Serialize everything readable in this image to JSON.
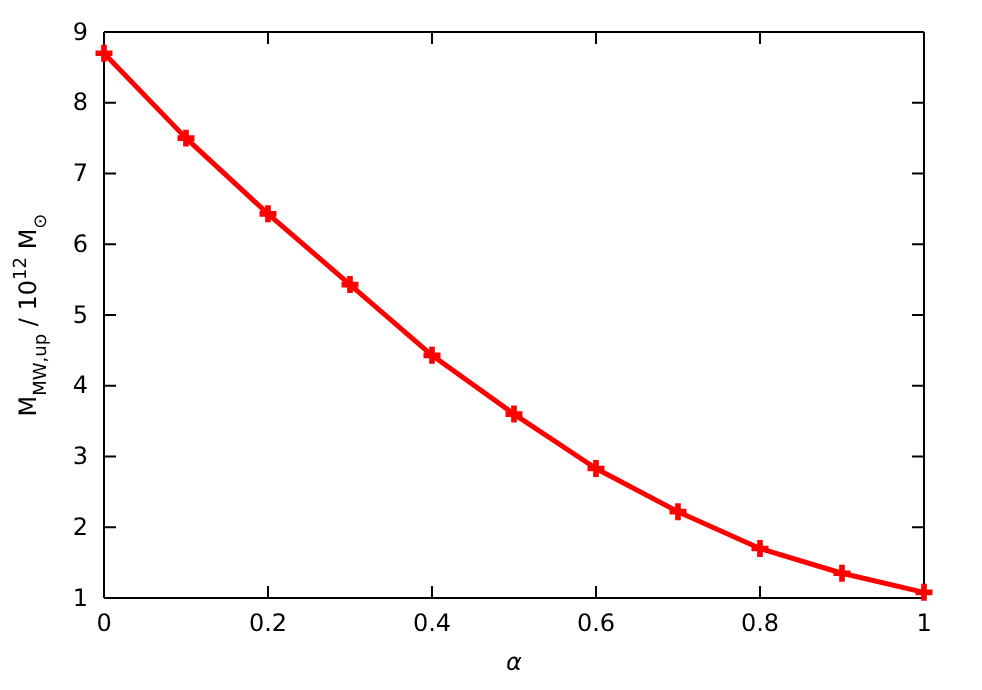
{
  "chart_data": {
    "type": "line",
    "xlabel": "α",
    "ylabel": "M$_{MW,up}$ / 10$^{12}$ M$_{⊙}$",
    "x": [
      0,
      0.1,
      0.2,
      0.3,
      0.4,
      0.5,
      0.6,
      0.7,
      0.8,
      0.9,
      1
    ],
    "series": [
      {
        "color": "#ff0000",
        "values": [
          8.7,
          7.5,
          6.43,
          5.43,
          4.43,
          3.6,
          2.83,
          2.22,
          1.7,
          1.35,
          1.08
        ]
      }
    ],
    "xlim": [
      0,
      1
    ],
    "ylim": [
      1,
      9
    ],
    "xticks": [
      0,
      0.2,
      0.4,
      0.6,
      0.8,
      1
    ],
    "yticks": [
      1,
      2,
      3,
      4,
      5,
      6,
      7,
      8,
      9
    ],
    "grid": false,
    "marker": "cross",
    "line_style": "solid"
  }
}
